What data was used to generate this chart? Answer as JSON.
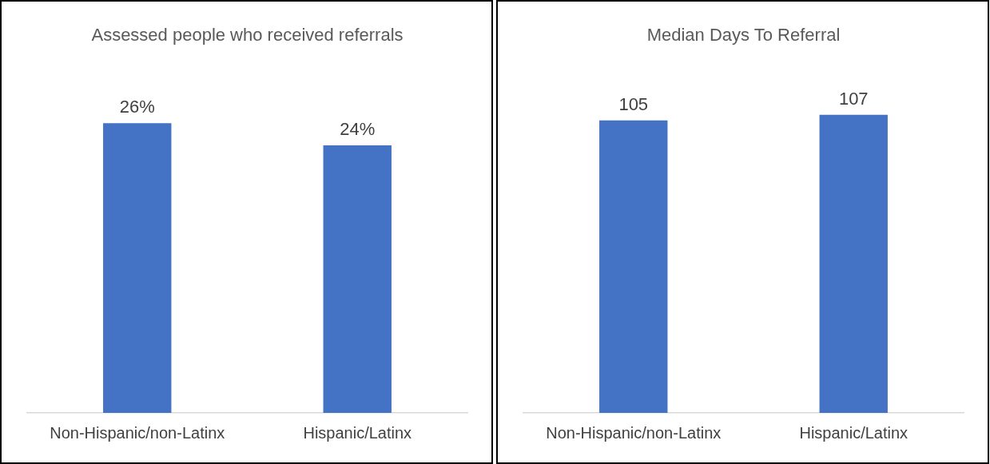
{
  "chart_data": [
    {
      "type": "bar",
      "title": "Assessed people who received referrals",
      "categories": [
        "Non-Hispanic/non-Latinx",
        "Hispanic/Latinx"
      ],
      "values": [
        26,
        24
      ],
      "value_labels": [
        "26%",
        "24%"
      ],
      "color": "#4472c4",
      "grid": false,
      "legend": false
    },
    {
      "type": "bar",
      "title": "Median Days To Referral",
      "categories": [
        "Non-Hispanic/non-Latinx",
        "Hispanic/Latinx"
      ],
      "values": [
        105,
        107
      ],
      "data_labels": true,
      "color": "#4472c4",
      "grid": false,
      "legend": false
    }
  ]
}
